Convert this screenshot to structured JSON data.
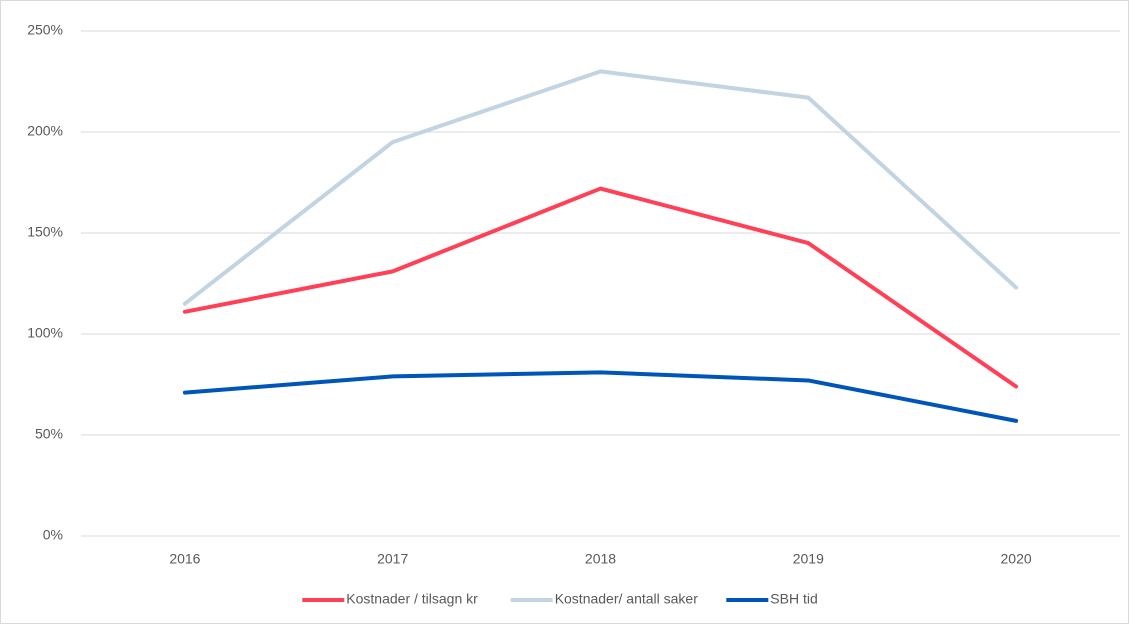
{
  "chart_data": {
    "type": "line",
    "categories": [
      "2016",
      "2017",
      "2018",
      "2019",
      "2020"
    ],
    "series": [
      {
        "name": "Kostnader / tilsagn kr",
        "color": "#ff4057",
        "values": [
          111,
          131,
          172,
          145,
          74
        ]
      },
      {
        "name": "Kostnader/ antall saker",
        "color": "#c2d4e1",
        "values": [
          115,
          195,
          230,
          217,
          123
        ]
      },
      {
        "name": "SBH tid",
        "color": "#0055b8",
        "values": [
          71,
          79,
          81,
          77,
          57
        ]
      }
    ],
    "ylim": [
      0,
      250
    ],
    "yticks": [
      {
        "value": 0,
        "label": "0%"
      },
      {
        "value": 50,
        "label": "50%"
      },
      {
        "value": 100,
        "label": "100%"
      },
      {
        "value": 150,
        "label": "150%"
      },
      {
        "value": 200,
        "label": "200%"
      },
      {
        "value": 250,
        "label": "250%"
      }
    ],
    "grid": true,
    "legend": "bottom"
  }
}
